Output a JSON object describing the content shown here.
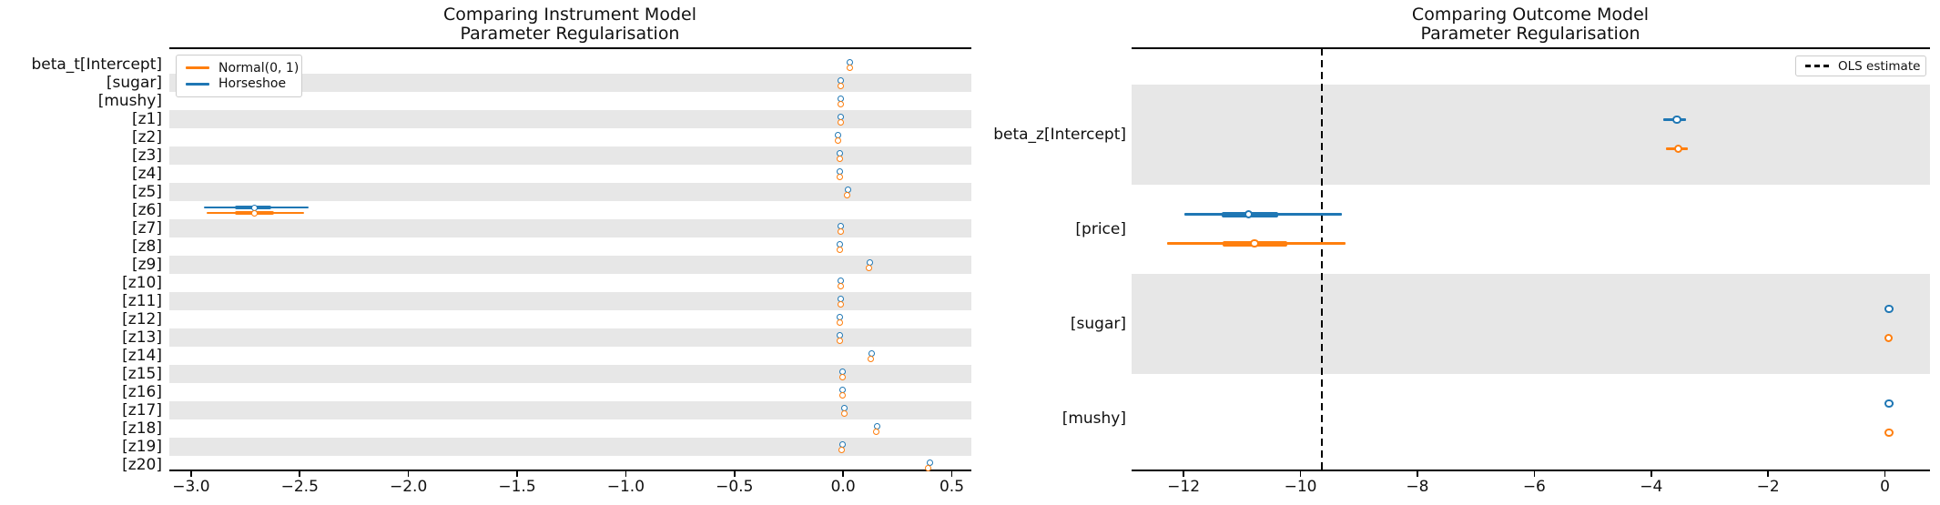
{
  "colors": {
    "normal_prior": "#ff7f0e",
    "horseshoe_prior": "#1f77b4",
    "band": "#e7e7e7",
    "ols_line": "#000000"
  },
  "chart_data": [
    {
      "type": "forest",
      "title": "Comparing Instrument Model",
      "subtitle": "Parameter Regularisation",
      "xlim": [
        -3.1,
        0.59
      ],
      "xticks": [
        -3.0,
        -2.5,
        -2.0,
        -1.5,
        -1.0,
        -0.5,
        0.0,
        0.5
      ],
      "xtick_labels": [
        "−3.0",
        "−2.5",
        "−2.0",
        "−1.5",
        "−1.0",
        "−0.5",
        "0.0",
        "0.5"
      ],
      "grid": false,
      "legend": {
        "position": "upper-left",
        "entries": [
          {
            "label": "Normal(0, 1)",
            "color": "#ff7f0e"
          },
          {
            "label": "Horseshoe",
            "color": "#1f77b4"
          }
        ]
      },
      "rows": [
        {
          "label": "beta_t[Intercept]",
          "horseshoe": {
            "mean": 0.03
          },
          "normal": {
            "mean": 0.03
          }
        },
        {
          "label": "[sugar]",
          "horseshoe": {
            "mean": -0.013
          },
          "normal": {
            "mean": -0.013
          }
        },
        {
          "label": "[mushy]",
          "horseshoe": {
            "mean": -0.013
          },
          "normal": {
            "mean": -0.013
          }
        },
        {
          "label": "[z1]",
          "horseshoe": {
            "mean": -0.013
          },
          "normal": {
            "mean": -0.013
          }
        },
        {
          "label": "[z2]",
          "horseshoe": {
            "mean": -0.022
          },
          "normal": {
            "mean": -0.022
          }
        },
        {
          "label": "[z3]",
          "horseshoe": {
            "mean": -0.014
          },
          "normal": {
            "mean": -0.014
          }
        },
        {
          "label": "[z4]",
          "horseshoe": {
            "mean": -0.014
          },
          "normal": {
            "mean": -0.014
          }
        },
        {
          "label": "[z5]",
          "horseshoe": {
            "mean": 0.021
          },
          "normal": {
            "mean": 0.019
          }
        },
        {
          "label": "[z6]",
          "horseshoe": {
            "mean": -2.71,
            "ci94": [
              -2.94,
              -2.46
            ],
            "ci50": [
              -2.8,
              -2.63
            ]
          },
          "normal": {
            "mean": -2.71,
            "ci94": [
              -2.93,
              -2.48
            ],
            "ci50": [
              -2.8,
              -2.62
            ]
          }
        },
        {
          "label": "[z7]",
          "horseshoe": {
            "mean": -0.011
          },
          "normal": {
            "mean": -0.011
          }
        },
        {
          "label": "[z8]",
          "horseshoe": {
            "mean": -0.014
          },
          "normal": {
            "mean": -0.014
          }
        },
        {
          "label": "[z9]",
          "horseshoe": {
            "mean": 0.122
          },
          "normal": {
            "mean": 0.12
          }
        },
        {
          "label": "[z10]",
          "horseshoe": {
            "mean": -0.011
          },
          "normal": {
            "mean": -0.011
          }
        },
        {
          "label": "[z11]",
          "horseshoe": {
            "mean": -0.011
          },
          "normal": {
            "mean": -0.011
          }
        },
        {
          "label": "[z12]",
          "horseshoe": {
            "mean": -0.014
          },
          "normal": {
            "mean": -0.014
          }
        },
        {
          "label": "[z13]",
          "horseshoe": {
            "mean": -0.015
          },
          "normal": {
            "mean": -0.017
          }
        },
        {
          "label": "[z14]",
          "horseshoe": {
            "mean": 0.13
          },
          "normal": {
            "mean": 0.128
          }
        },
        {
          "label": "[z15]",
          "horseshoe": {
            "mean": -0.003
          },
          "normal": {
            "mean": -0.004
          }
        },
        {
          "label": "[z16]",
          "horseshoe": {
            "mean": -0.001
          },
          "normal": {
            "mean": -0.003
          }
        },
        {
          "label": "[z17]",
          "horseshoe": {
            "mean": 0.007
          },
          "normal": {
            "mean": 0.005
          }
        },
        {
          "label": "[z18]",
          "horseshoe": {
            "mean": 0.155
          },
          "normal": {
            "mean": 0.153
          }
        },
        {
          "label": "[z19]",
          "horseshoe": {
            "mean": -0.004
          },
          "normal": {
            "mean": -0.006
          }
        },
        {
          "label": "[z20]",
          "horseshoe": {
            "mean": 0.4
          },
          "normal": {
            "mean": 0.39
          }
        }
      ]
    },
    {
      "type": "forest",
      "title": "Comparing Outcome Model",
      "subtitle": "Parameter Regularisation",
      "xlim": [
        -12.89,
        0.77
      ],
      "xticks": [
        -12,
        -10,
        -8,
        -6,
        -4,
        -2,
        0
      ],
      "xtick_labels": [
        "−12",
        "−10",
        "−8",
        "−6",
        "−4",
        "−2",
        "0"
      ],
      "grid": false,
      "ols_estimate": -9.63,
      "legend": {
        "position": "upper-right",
        "entries": [
          {
            "label": "OLS estimate",
            "style": "dashed",
            "color": "#000000"
          }
        ]
      },
      "rows": [
        {
          "label": "beta_z[Intercept]",
          "horseshoe": {
            "mean": -3.56,
            "ci94": [
              -3.79,
              -3.4
            ]
          },
          "normal": {
            "mean": -3.54,
            "ci94": [
              -3.74,
              -3.38
            ]
          }
        },
        {
          "label": "[price]",
          "horseshoe": {
            "mean": -10.89,
            "ci94": [
              -11.98,
              -9.29
            ],
            "ci50": [
              -11.35,
              -10.38
            ]
          },
          "normal": {
            "mean": -10.79,
            "ci94": [
              -12.29,
              -9.23
            ],
            "ci50": [
              -11.34,
              -10.23
            ]
          }
        },
        {
          "label": "[sugar]",
          "horseshoe": {
            "mean": 0.07
          },
          "normal": {
            "mean": 0.06
          }
        },
        {
          "label": "[mushy]",
          "horseshoe": {
            "mean": 0.07,
            "ci94": [
              0.0,
              0.14
            ]
          },
          "normal": {
            "mean": 0.07,
            "ci94": [
              0.01,
              0.13
            ]
          }
        }
      ]
    }
  ]
}
